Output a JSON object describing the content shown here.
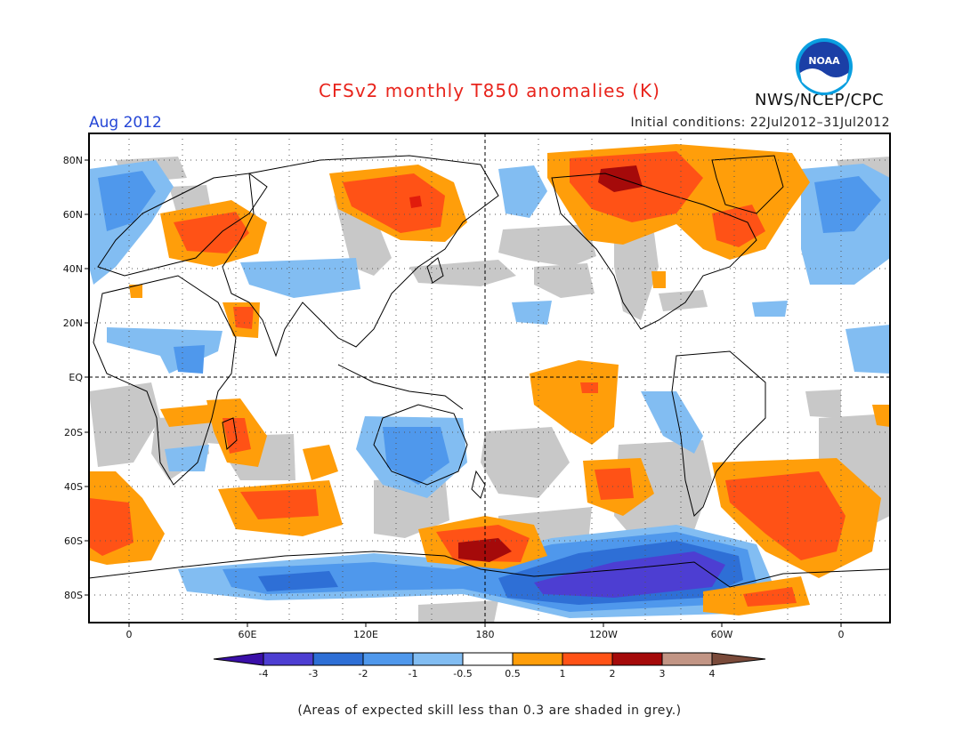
{
  "title": "CFSv2 monthly T850 anomalies (K)",
  "valid_month": "Aug 2012",
  "initial_conditions": "Initial conditions: 22Jul2012–31Jul2012",
  "agency": "NWS/NCEP/CPC",
  "logo": {
    "icon": "noaa-logo-icon",
    "text": "NOAA"
  },
  "footnote": "(Areas of expected skill less than 0.3 are shaded in grey.)",
  "map": {
    "projection": "cylindrical equidistant, centered 180",
    "lat_labels": [
      "80N",
      "60N",
      "40N",
      "20N",
      "EQ",
      "20S",
      "40S",
      "60S",
      "80S"
    ],
    "lon_labels": [
      "0",
      "60E",
      "120E",
      "180",
      "120W",
      "60W",
      "0"
    ],
    "low_skill_color": "#c8c8c8"
  },
  "colorbar": {
    "tick_labels": [
      "-4",
      "-3",
      "-2",
      "-1",
      "-0.5",
      "0.5",
      "1",
      "2",
      "3",
      "4"
    ],
    "colors": [
      "#3a0fa8",
      "#4d3ed2",
      "#2e6fd6",
      "#4f98ec",
      "#82bdf2",
      "#ffffff",
      "#ff9e0a",
      "#ff5216",
      "#e11c0c",
      "#a50a0a",
      "#c29585",
      "#7a4a3a"
    ]
  }
}
